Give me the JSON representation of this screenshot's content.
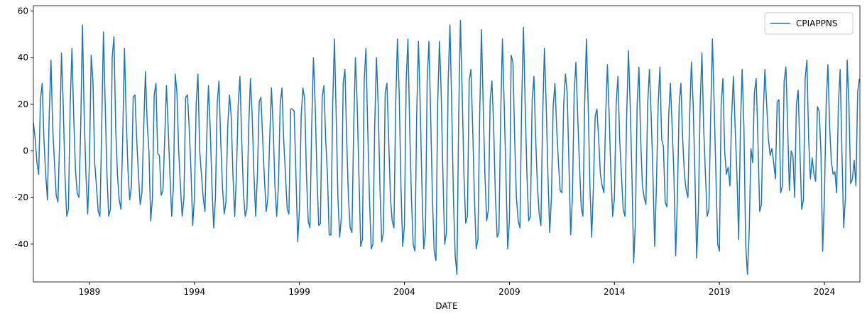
{
  "chart_data": {
    "type": "line",
    "xlabel": "DATE",
    "legend": "upper right",
    "grid": false,
    "xlim": [
      1986.33,
      2025.69
    ],
    "ylim": [
      -56.2,
      62.3
    ],
    "xticks": [
      1989,
      1994,
      1999,
      2004,
      2009,
      2014,
      2019,
      2024
    ],
    "yticks": [
      -40,
      -20,
      0,
      20,
      40,
      60
    ],
    "x": [
      1986.333,
      1986.417,
      1986.5,
      1986.583,
      1986.667,
      1986.75,
      1986.833,
      1986.917,
      1987,
      1987.083,
      1987.167,
      1987.25,
      1987.333,
      1987.417,
      1987.5,
      1987.583,
      1987.667,
      1987.75,
      1987.833,
      1987.917,
      1988,
      1988.083,
      1988.167,
      1988.25,
      1988.333,
      1988.417,
      1988.5,
      1988.583,
      1988.667,
      1988.75,
      1988.833,
      1988.917,
      1989,
      1989.083,
      1989.167,
      1989.25,
      1989.333,
      1989.417,
      1989.5,
      1989.583,
      1989.667,
      1989.75,
      1989.833,
      1989.917,
      1990,
      1990.083,
      1990.167,
      1990.25,
      1990.333,
      1990.417,
      1990.5,
      1990.583,
      1990.667,
      1990.75,
      1990.833,
      1990.917,
      1991,
      1991.083,
      1991.167,
      1991.25,
      1991.333,
      1991.417,
      1991.5,
      1991.583,
      1991.667,
      1991.75,
      1991.833,
      1991.917,
      1992,
      1992.083,
      1992.167,
      1992.25,
      1992.333,
      1992.417,
      1992.5,
      1992.583,
      1992.667,
      1992.75,
      1992.833,
      1992.917,
      1993,
      1993.083,
      1993.167,
      1993.25,
      1993.333,
      1993.417,
      1993.5,
      1993.583,
      1993.667,
      1993.75,
      1993.833,
      1993.917,
      1994,
      1994.083,
      1994.167,
      1994.25,
      1994.333,
      1994.417,
      1994.5,
      1994.583,
      1994.667,
      1994.75,
      1994.833,
      1994.917,
      1995,
      1995.083,
      1995.167,
      1995.25,
      1995.333,
      1995.417,
      1995.5,
      1995.583,
      1995.667,
      1995.75,
      1995.833,
      1995.917,
      1996,
      1996.083,
      1996.167,
      1996.25,
      1996.333,
      1996.417,
      1996.5,
      1996.583,
      1996.667,
      1996.75,
      1996.833,
      1996.917,
      1997,
      1997.083,
      1997.167,
      1997.25,
      1997.333,
      1997.417,
      1997.5,
      1997.583,
      1997.667,
      1997.75,
      1997.833,
      1997.917,
      1998,
      1998.083,
      1998.167,
      1998.25,
      1998.333,
      1998.417,
      1998.5,
      1998.583,
      1998.667,
      1998.75,
      1998.833,
      1998.917,
      1999,
      1999.083,
      1999.167,
      1999.25,
      1999.333,
      1999.417,
      1999.5,
      1999.583,
      1999.667,
      1999.75,
      1999.833,
      1999.917,
      2000,
      2000.083,
      2000.167,
      2000.25,
      2000.333,
      2000.417,
      2000.5,
      2000.583,
      2000.667,
      2000.75,
      2000.833,
      2000.917,
      2001,
      2001.083,
      2001.167,
      2001.25,
      2001.333,
      2001.417,
      2001.5,
      2001.583,
      2001.667,
      2001.75,
      2001.833,
      2001.917,
      2002,
      2002.083,
      2002.167,
      2002.25,
      2002.333,
      2002.417,
      2002.5,
      2002.583,
      2002.667,
      2002.75,
      2002.833,
      2002.917,
      2003,
      2003.083,
      2003.167,
      2003.25,
      2003.333,
      2003.417,
      2003.5,
      2003.583,
      2003.667,
      2003.75,
      2003.833,
      2003.917,
      2004,
      2004.083,
      2004.167,
      2004.25,
      2004.333,
      2004.417,
      2004.5,
      2004.583,
      2004.667,
      2004.75,
      2004.833,
      2004.917,
      2005,
      2005.083,
      2005.167,
      2005.25,
      2005.333,
      2005.417,
      2005.5,
      2005.583,
      2005.667,
      2005.75,
      2005.833,
      2005.917,
      2006,
      2006.083,
      2006.167,
      2006.25,
      2006.333,
      2006.417,
      2006.5,
      2006.583,
      2006.667,
      2006.75,
      2006.833,
      2006.917,
      2007,
      2007.083,
      2007.167,
      2007.25,
      2007.333,
      2007.417,
      2007.5,
      2007.583,
      2007.667,
      2007.75,
      2007.833,
      2007.917,
      2008,
      2008.083,
      2008.167,
      2008.25,
      2008.333,
      2008.417,
      2008.5,
      2008.583,
      2008.667,
      2008.75,
      2008.833,
      2008.917,
      2009,
      2009.083,
      2009.167,
      2009.25,
      2009.333,
      2009.417,
      2009.5,
      2009.583,
      2009.667,
      2009.75,
      2009.833,
      2009.917,
      2010,
      2010.083,
      2010.167,
      2010.25,
      2010.333,
      2010.417,
      2010.5,
      2010.583,
      2010.667,
      2010.75,
      2010.833,
      2010.917,
      2011,
      2011.083,
      2011.167,
      2011.25,
      2011.333,
      2011.417,
      2011.5,
      2011.583,
      2011.667,
      2011.75,
      2011.833,
      2011.917,
      2012,
      2012.083,
      2012.167,
      2012.25,
      2012.333,
      2012.417,
      2012.5,
      2012.583,
      2012.667,
      2012.75,
      2012.833,
      2012.917,
      2013,
      2013.083,
      2013.167,
      2013.25,
      2013.333,
      2013.417,
      2013.5,
      2013.583,
      2013.667,
      2013.75,
      2013.833,
      2013.917,
      2014,
      2014.083,
      2014.167,
      2014.25,
      2014.333,
      2014.417,
      2014.5,
      2014.583,
      2014.667,
      2014.75,
      2014.833,
      2014.917,
      2015,
      2015.083,
      2015.167,
      2015.25,
      2015.333,
      2015.417,
      2015.5,
      2015.583,
      2015.667,
      2015.75,
      2015.833,
      2015.917,
      2016,
      2016.083,
      2016.167,
      2016.25,
      2016.333,
      2016.417,
      2016.5,
      2016.583,
      2016.667,
      2016.75,
      2016.833,
      2016.917,
      2017,
      2017.083,
      2017.167,
      2017.25,
      2017.333,
      2017.417,
      2017.5,
      2017.583,
      2017.667,
      2017.75,
      2017.833,
      2017.917,
      2018,
      2018.083,
      2018.167,
      2018.25,
      2018.333,
      2018.417,
      2018.5,
      2018.583,
      2018.667,
      2018.75,
      2018.833,
      2018.917,
      2019,
      2019.083,
      2019.167,
      2019.25,
      2019.333,
      2019.417,
      2019.5,
      2019.583,
      2019.667,
      2019.75,
      2019.833,
      2019.917,
      2020,
      2020.083,
      2020.167,
      2020.25,
      2020.333,
      2020.417,
      2020.5,
      2020.583,
      2020.667,
      2020.75,
      2020.833,
      2020.917,
      2021,
      2021.083,
      2021.167,
      2021.25,
      2021.333,
      2021.417,
      2021.5,
      2021.583,
      2021.667,
      2021.75,
      2021.833,
      2021.917,
      2022,
      2022.083,
      2022.167,
      2022.25,
      2022.333,
      2022.417,
      2022.5,
      2022.583,
      2022.667,
      2022.75,
      2022.833,
      2022.917,
      2023,
      2023.083,
      2023.167,
      2023.25,
      2023.333,
      2023.417,
      2023.5,
      2023.583,
      2023.667,
      2023.75,
      2023.833,
      2023.917,
      2024,
      2024.083,
      2024.167,
      2024.25,
      2024.333,
      2024.417,
      2024.5,
      2024.583,
      2024.667,
      2024.75,
      2024.833,
      2024.917,
      2025,
      2025.083,
      2025.167,
      2025.25,
      2025.333,
      2025.417,
      2025.5,
      2025.583,
      2025.667
    ],
    "series": [
      {
        "name": "CPIAPPNS",
        "color": "#1f77b4",
        "values": [
          12,
          5,
          -5,
          -10,
          22,
          29,
          5,
          -10,
          -21,
          15,
          39,
          10,
          -5,
          -19,
          -22,
          5,
          42,
          20,
          -10,
          -28,
          -25,
          20,
          44,
          15,
          -8,
          -18,
          -20,
          10,
          54,
          15,
          -10,
          -27,
          -5,
          41,
          30,
          -5,
          -15,
          -26,
          -28,
          10,
          51,
          20,
          -10,
          -28,
          -25,
          40,
          49,
          10,
          -10,
          -21,
          -25,
          5,
          44,
          15,
          -8,
          -21,
          -15,
          23,
          24,
          5,
          -10,
          -23,
          -18,
          10,
          34,
          12,
          0,
          -30,
          -20,
          24,
          29,
          -1,
          -2,
          -19,
          -17,
          5,
          28,
          10,
          -10,
          -28,
          -15,
          33,
          25,
          0,
          -15,
          -28,
          -20,
          23,
          24,
          10,
          -8,
          -32,
          -20,
          20,
          33,
          0,
          -10,
          -20,
          -26,
          5,
          28,
          10,
          -15,
          -33,
          -20,
          20,
          30,
          5,
          -15,
          -27,
          -22,
          10,
          24,
          15,
          -10,
          -28,
          -10,
          20,
          32,
          5,
          -18,
          -28,
          -25,
          10,
          31,
          15,
          -10,
          -28,
          -10,
          21,
          23,
          5,
          -12,
          -26,
          -20,
          5,
          27,
          10,
          -15,
          -28,
          -15,
          20,
          27,
          5,
          -10,
          -25,
          -27,
          18,
          18,
          17,
          -10,
          -39,
          -25,
          15,
          27,
          22,
          -10,
          -30,
          -33,
          10,
          40,
          20,
          -10,
          -32,
          -31,
          23,
          28,
          5,
          -10,
          -36,
          -36,
          20,
          48,
          15,
          -20,
          -37,
          -28,
          29,
          35,
          5,
          -20,
          -33,
          -35,
          10,
          40,
          20,
          -10,
          -41,
          -38,
          30,
          44,
          10,
          -20,
          -42,
          -40,
          10,
          40,
          20,
          -15,
          -39,
          -35,
          25,
          29,
          5,
          -20,
          -30,
          -33,
          20,
          48,
          25,
          -15,
          -41,
          -32,
          30,
          48,
          10,
          -20,
          -40,
          -43,
          15,
          47,
          20,
          -15,
          -42,
          -35,
          30,
          47,
          15,
          -20,
          -43,
          -47,
          20,
          47,
          25,
          -10,
          -40,
          -35,
          30,
          54,
          20,
          -20,
          -45,
          -53,
          15,
          56,
          25,
          -10,
          -31,
          -28,
          30,
          35,
          10,
          -20,
          -42,
          -38,
          15,
          52,
          20,
          -10,
          -30,
          -25,
          22,
          30,
          10,
          -20,
          -37,
          -35,
          15,
          48,
          20,
          -10,
          -42,
          -30,
          41,
          38,
          5,
          -20,
          -30,
          -33,
          20,
          53,
          20,
          -10,
          -30,
          -28,
          22,
          32,
          5,
          -15,
          -27,
          -32,
          15,
          44,
          20,
          -10,
          -35,
          -20,
          19,
          29,
          10,
          -5,
          -17,
          -18,
          20,
          33,
          25,
          -5,
          -36,
          -20,
          25,
          38,
          15,
          -5,
          -24,
          -28,
          20,
          48,
          20,
          -15,
          -37,
          -15,
          15,
          18,
          5,
          -10,
          -15,
          -18,
          15,
          37,
          15,
          -10,
          -28,
          -20,
          20,
          32,
          5,
          -10,
          -25,
          -28,
          15,
          43,
          20,
          -10,
          -48,
          -30,
          20,
          36,
          5,
          -15,
          -20,
          -23,
          20,
          35,
          15,
          -10,
          -41,
          -15,
          20,
          36,
          5,
          2,
          -22,
          -24,
          15,
          29,
          10,
          -10,
          -45,
          -20,
          20,
          29,
          5,
          -10,
          -17,
          -20,
          15,
          38,
          20,
          -10,
          -46,
          -25,
          20,
          42,
          10,
          -10,
          -28,
          -25,
          15,
          48,
          20,
          -10,
          -40,
          -43,
          20,
          31,
          0,
          -10,
          -7,
          -15,
          15,
          32,
          10,
          -10,
          -38,
          10,
          35,
          10,
          -40,
          -53,
          -35,
          1,
          -5,
          25,
          31,
          5,
          -26,
          -23,
          15,
          35,
          20,
          5,
          -2,
          1,
          -5,
          -12,
          21,
          22,
          -18,
          -15,
          30,
          36,
          10,
          -17,
          0,
          -2,
          -20,
          20,
          26,
          0,
          -25,
          -21,
          31,
          39,
          5,
          -12,
          -3,
          -10,
          -13,
          19,
          17,
          0,
          -43,
          -20,
          20,
          37,
          10,
          -5,
          -10,
          -9,
          -18,
          20,
          35,
          0,
          -33,
          -20,
          39,
          20,
          -14,
          -12,
          -4,
          -15,
          25,
          31
        ]
      }
    ]
  }
}
